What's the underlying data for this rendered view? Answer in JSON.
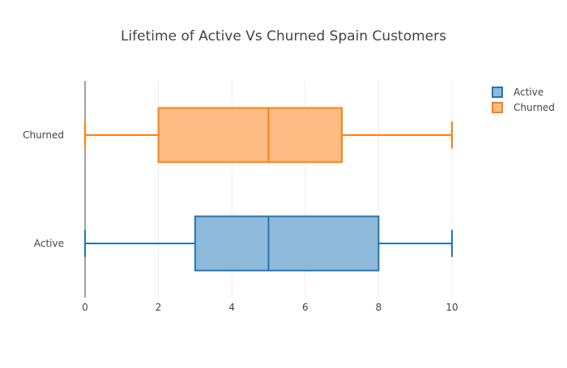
{
  "chart_data": {
    "type": "box",
    "orientation": "horizontal",
    "title": "Lifetime of Active Vs Churned Spain Customers",
    "xlabel": "",
    "ylabel": "",
    "xlim": [
      0,
      10
    ],
    "x_ticks": [
      "0",
      "2",
      "4",
      "6",
      "8",
      "10"
    ],
    "categories": [
      "Active",
      "Churned"
    ],
    "grid": true,
    "legend_position": "top-right",
    "series": [
      {
        "name": "Active",
        "min": 0,
        "q1": 3,
        "median": 5,
        "q3": 8,
        "max": 10,
        "color": "#1f77b4",
        "fill": "#8fb9db"
      },
      {
        "name": "Churned",
        "min": 0,
        "q1": 2,
        "median": 5,
        "q3": 7,
        "max": 10,
        "color": "#ff7f0e",
        "fill": "#ffbd85"
      }
    ]
  }
}
